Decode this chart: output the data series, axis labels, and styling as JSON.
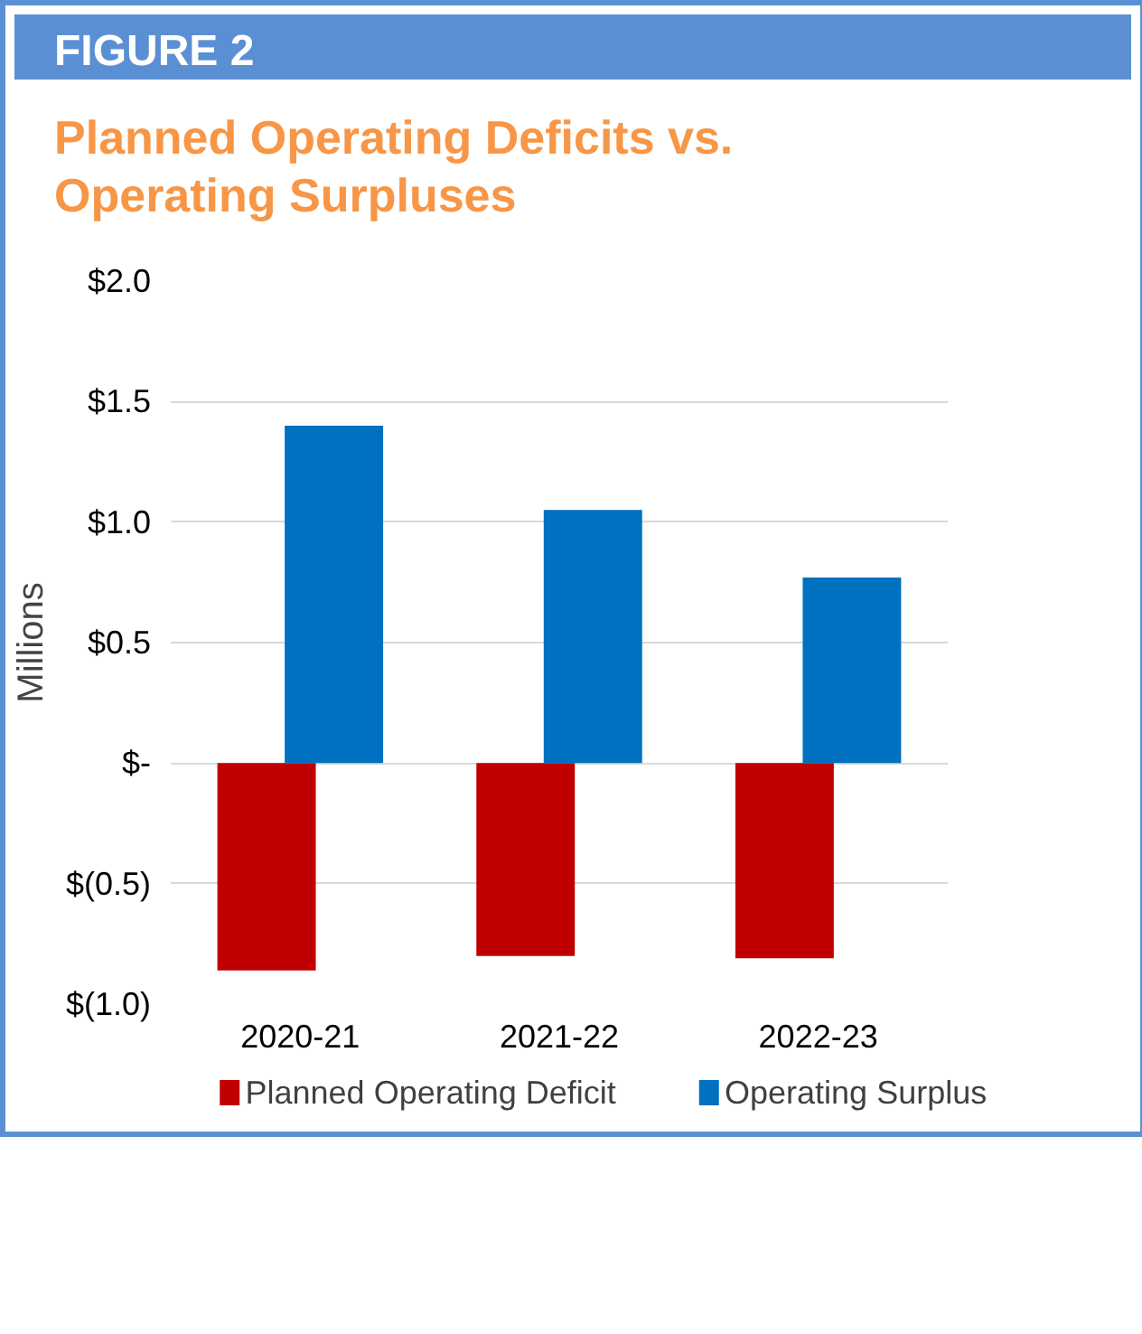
{
  "chart_data": {
    "type": "bar",
    "title": "Planned Operating Deficits vs. Operating Surpluses",
    "annotations": [
      "FIGURE 2"
    ],
    "ylabel": "Millions",
    "categories": [
      "2020-21",
      "2021-22",
      "2022-23"
    ],
    "series": [
      {
        "name": "Planned Operating Deficit",
        "color": "#c00000",
        "values": [
          -0.86,
          -0.8,
          -0.81
        ]
      },
      {
        "name": "Operating Surplus",
        "color": "#0070c0",
        "values": [
          1.4,
          1.05,
          0.77
        ]
      }
    ],
    "ylim": [
      -1.0,
      2.0
    ],
    "yticks": [
      {
        "value": -1.0,
        "label": "$(1.0)"
      },
      {
        "value": -0.5,
        "label": "$(0.5)"
      },
      {
        "value": 0,
        "label": "$-"
      },
      {
        "value": 0.5,
        "label": "$0.5"
      },
      {
        "value": 1.0,
        "label": "$1.0"
      },
      {
        "value": 1.5,
        "label": "$1.5"
      },
      {
        "value": 2.0,
        "label": "$2.0"
      }
    ],
    "grid": "y",
    "legend": "bottom"
  }
}
